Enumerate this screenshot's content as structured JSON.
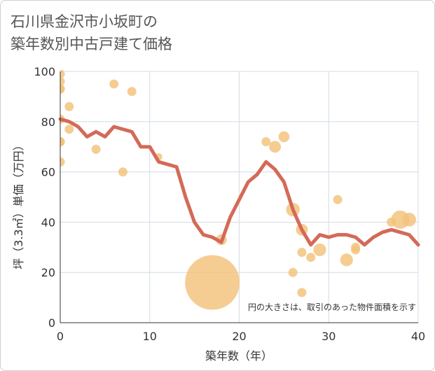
{
  "chart_data": {
    "type": "scatter",
    "title_line1": "石川県金沢市小坂町の",
    "title_line2": "築年数別中古戸建て価格",
    "xlabel": "築年数（年）",
    "ylabel": "坪（3.3㎡）単価（万円）",
    "xlim": [
      0,
      40
    ],
    "ylim": [
      0,
      100
    ],
    "xticks": [
      0,
      10,
      20,
      30,
      40
    ],
    "yticks": [
      0,
      20,
      40,
      60,
      80,
      100
    ],
    "grid": true,
    "note": "円の大きさは、取引のあった物件面積を示す",
    "colors": {
      "points": "#f3c27a",
      "trend": "#d46a58",
      "grid": "#d4dbe3",
      "axis": "#333333"
    },
    "points": [
      {
        "x": 0,
        "y": 99,
        "size": 1
      },
      {
        "x": 0,
        "y": 96,
        "size": 1
      },
      {
        "x": 0,
        "y": 93,
        "size": 1
      },
      {
        "x": 0,
        "y": 93,
        "size": 1
      },
      {
        "x": 0,
        "y": 81,
        "size": 1
      },
      {
        "x": 0,
        "y": 72,
        "size": 1
      },
      {
        "x": 0,
        "y": 72,
        "size": 1
      },
      {
        "x": 0,
        "y": 64,
        "size": 1
      },
      {
        "x": 1,
        "y": 86,
        "size": 1
      },
      {
        "x": 1,
        "y": 77,
        "size": 1
      },
      {
        "x": 4,
        "y": 69,
        "size": 1
      },
      {
        "x": 6,
        "y": 95,
        "size": 1
      },
      {
        "x": 7,
        "y": 60,
        "size": 1
      },
      {
        "x": 8,
        "y": 92,
        "size": 1
      },
      {
        "x": 11,
        "y": 66,
        "size": 0.8
      },
      {
        "x": 17,
        "y": 16,
        "size": 6
      },
      {
        "x": 18,
        "y": 33,
        "size": 1.2
      },
      {
        "x": 23,
        "y": 72,
        "size": 1
      },
      {
        "x": 24,
        "y": 70,
        "size": 1.3
      },
      {
        "x": 25,
        "y": 74,
        "size": 1.2
      },
      {
        "x": 26,
        "y": 45,
        "size": 1.5
      },
      {
        "x": 26,
        "y": 20,
        "size": 1
      },
      {
        "x": 27,
        "y": 37,
        "size": 1.3
      },
      {
        "x": 27,
        "y": 28,
        "size": 1
      },
      {
        "x": 27,
        "y": 12,
        "size": 1
      },
      {
        "x": 28,
        "y": 26,
        "size": 1
      },
      {
        "x": 29,
        "y": 29,
        "size": 1.4
      },
      {
        "x": 31,
        "y": 49,
        "size": 1
      },
      {
        "x": 32,
        "y": 25,
        "size": 1.4
      },
      {
        "x": 33,
        "y": 30,
        "size": 1
      },
      {
        "x": 33,
        "y": 29,
        "size": 1
      },
      {
        "x": 37,
        "y": 40,
        "size": 1
      },
      {
        "x": 38,
        "y": 41,
        "size": 2
      },
      {
        "x": 39,
        "y": 41,
        "size": 1.5
      }
    ],
    "trend": {
      "x": [
        0,
        1,
        2,
        3,
        4,
        5,
        6,
        7,
        8,
        9,
        10,
        11,
        12,
        13,
        14,
        15,
        16,
        17,
        18,
        19,
        20,
        21,
        22,
        23,
        24,
        25,
        26,
        27,
        28,
        29,
        30,
        31,
        32,
        33,
        34,
        35,
        36,
        37,
        38,
        39,
        40
      ],
      "y": [
        81,
        80,
        78,
        74,
        76,
        74,
        78,
        77,
        76,
        70,
        70,
        64,
        63,
        62,
        50,
        40,
        35,
        34,
        32,
        42,
        49,
        56,
        59,
        64,
        61,
        56,
        45,
        37,
        31,
        35,
        34,
        35,
        35,
        34,
        31,
        34,
        36,
        37,
        36,
        35,
        31
      ]
    }
  }
}
